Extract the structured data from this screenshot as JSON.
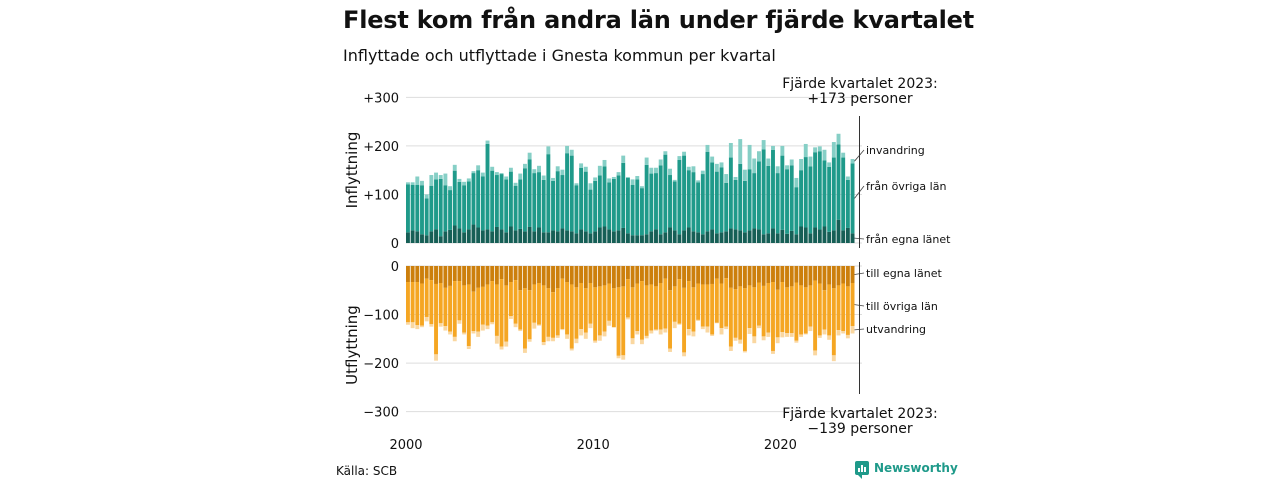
{
  "header": {
    "title": "Flest kom från andra län under fjärde kvartalet",
    "subtitle": "Inflyttade och utflyttade i Gnesta kommun per kvartal"
  },
  "footer": {
    "source": "Källa: SCB",
    "brand": "Newsworthy",
    "brand_icon": "bar-chart-icon"
  },
  "colors": {
    "from_own_county": "#165f56",
    "from_other_counties": "#1f9a8a",
    "immigration": "#86cfc6",
    "to_own_county": "#cc7f0c",
    "to_other_counties": "#f5a623",
    "emigration": "#fad7a0",
    "text": "#111111",
    "grid": "#dddddd"
  },
  "chart_data": [
    {
      "type": "bar",
      "stacked": true,
      "ylabel": "Inflyttning",
      "ylim": [
        0,
        300
      ],
      "yticks": [
        0,
        100,
        200,
        300
      ],
      "ytick_labels": [
        "0",
        "+100",
        "+200",
        "+300"
      ],
      "x_start": 2000,
      "x_ticks": [
        "2000",
        "2010",
        "2020"
      ],
      "grid": true,
      "annotation": "Fjärde kvartalet 2023:\n+173 personer",
      "series": [
        {
          "name": "från egna länet",
          "values": [
            22,
            26,
            24,
            18,
            16,
            24,
            28,
            14,
            24,
            27,
            36,
            30,
            22,
            28,
            38,
            32,
            26,
            28,
            24,
            33,
            28,
            22,
            34,
            26,
            29,
            24,
            33,
            24,
            32,
            22,
            22,
            26,
            24,
            30,
            26,
            24,
            20,
            28,
            24,
            20,
            24,
            32,
            34,
            28,
            24,
            26,
            31,
            20,
            16,
            16,
            16,
            18,
            24,
            28,
            18,
            22,
            32,
            26,
            18,
            26,
            32,
            24,
            22,
            18,
            24,
            28,
            20,
            22,
            24,
            30,
            28,
            26,
            22,
            26,
            30,
            28,
            18,
            20,
            30,
            20,
            27,
            19,
            25,
            18,
            34,
            32,
            20,
            32,
            28,
            34,
            23,
            26,
            48,
            26,
            31,
            20
          ]
        },
        {
          "name": "från övriga län",
          "values": [
            99,
            94,
            96,
            101,
            76,
            94,
            103,
            118,
            95,
            82,
            113,
            96,
            97,
            99,
            106,
            118,
            111,
            176,
            125,
            107,
            114,
            109,
            113,
            92,
            102,
            130,
            139,
            120,
            114,
            108,
            161,
            102,
            124,
            110,
            159,
            156,
            99,
            127,
            123,
            90,
            104,
            107,
            124,
            97,
            108,
            113,
            134,
            114,
            104,
            115,
            97,
            143,
            119,
            116,
            142,
            160,
            108,
            101,
            153,
            154,
            118,
            122,
            103,
            124,
            164,
            138,
            127,
            134,
            100,
            146,
            102,
            137,
            106,
            126,
            114,
            140,
            175,
            139,
            162,
            124,
            153,
            133,
            135,
            97,
            116,
            145,
            138,
            155,
            161,
            136,
            134,
            150,
            155,
            150,
            99,
            144
          ]
        },
        {
          "name": "invandring",
          "values": [
            4,
            5,
            17,
            9,
            8,
            22,
            14,
            8,
            24,
            8,
            12,
            6,
            7,
            6,
            4,
            10,
            8,
            7,
            8,
            6,
            2,
            6,
            8,
            6,
            12,
            9,
            14,
            8,
            13,
            9,
            16,
            6,
            10,
            11,
            15,
            12,
            4,
            9,
            10,
            13,
            7,
            20,
            13,
            8,
            4,
            7,
            15,
            2,
            11,
            7,
            4,
            15,
            12,
            11,
            12,
            7,
            13,
            3,
            8,
            8,
            7,
            12,
            4,
            7,
            14,
            12,
            16,
            10,
            18,
            30,
            6,
            51,
            23,
            50,
            30,
            21,
            19,
            15,
            8,
            14,
            20,
            8,
            12,
            19,
            23,
            27,
            20,
            10,
            10,
            22,
            9,
            32,
            22,
            10,
            7,
            9
          ]
        }
      ]
    },
    {
      "type": "bar",
      "stacked": true,
      "ylabel": "Utflyttning",
      "ylim": [
        -300,
        0
      ],
      "yticks": [
        0,
        -100,
        -200,
        -300
      ],
      "ytick_labels": [
        "0",
        "−100",
        "−200",
        "−300"
      ],
      "x_start": 2000,
      "x_ticks": [
        "2000",
        "2010",
        "2020"
      ],
      "grid": true,
      "annotation": "Fjärde kvartalet 2023:\n−139 personer",
      "series": [
        {
          "name": "till egna länet",
          "values": [
            -33,
            -33,
            -33,
            -36,
            -26,
            -29,
            -37,
            -35,
            -45,
            -41,
            -31,
            -31,
            -40,
            -38,
            -53,
            -45,
            -43,
            -38,
            -31,
            -38,
            -27,
            -40,
            -33,
            -29,
            -50,
            -46,
            -50,
            -38,
            -35,
            -40,
            -46,
            -54,
            -46,
            -26,
            -33,
            -38,
            -44,
            -35,
            -46,
            -35,
            -44,
            -42,
            -40,
            -36,
            -46,
            -44,
            -42,
            -27,
            -44,
            -36,
            -31,
            -40,
            -38,
            -42,
            -35,
            -26,
            -50,
            -42,
            -27,
            -45,
            -31,
            -44,
            -36,
            -38,
            -38,
            -37,
            -26,
            -36,
            -25,
            -45,
            -48,
            -42,
            -46,
            -40,
            -44,
            -34,
            -41,
            -35,
            -33,
            -49,
            -33,
            -44,
            -42,
            -34,
            -40,
            -44,
            -40,
            -30,
            -36,
            -50,
            -38,
            -46,
            -40,
            -36,
            -42,
            -35
          ]
        },
        {
          "name": "till övriga län",
          "values": [
            -83,
            -83,
            -89,
            -87,
            -79,
            -91,
            -145,
            -83,
            -79,
            -94,
            -115,
            -81,
            -97,
            -127,
            -81,
            -90,
            -78,
            -85,
            -85,
            -106,
            -139,
            -116,
            -70,
            -90,
            -81,
            -124,
            -101,
            -79,
            -86,
            -117,
            -100,
            -94,
            -97,
            -104,
            -108,
            -132,
            -106,
            -95,
            -91,
            -84,
            -110,
            -101,
            -95,
            -77,
            -80,
            -141,
            -142,
            -79,
            -105,
            -98,
            -121,
            -104,
            -95,
            -89,
            -96,
            -103,
            -120,
            -73,
            -92,
            -133,
            -99,
            -91,
            -75,
            -87,
            -87,
            -104,
            -91,
            -92,
            -100,
            -121,
            -100,
            -110,
            -129,
            -88,
            -101,
            -89,
            -104,
            -102,
            -142,
            -98,
            -103,
            -94,
            -96,
            -120,
            -101,
            -95,
            -85,
            -144,
            -107,
            -81,
            -105,
            -138,
            -92,
            -98,
            -100,
            -89
          ]
        },
        {
          "name": "utvandring",
          "values": [
            -5,
            -12,
            -8,
            -3,
            -9,
            -5,
            -13,
            -7,
            -9,
            -6,
            -9,
            -7,
            -4,
            -6,
            -5,
            -11,
            -12,
            -7,
            -4,
            -16,
            -6,
            -10,
            -6,
            -7,
            -3,
            -9,
            -5,
            -12,
            -2,
            -6,
            -9,
            -7,
            -5,
            -2,
            -9,
            -4,
            -9,
            -13,
            -13,
            -9,
            -4,
            -11,
            -10,
            -10,
            -1,
            -5,
            -9,
            -4,
            -12,
            -7,
            -9,
            -5,
            -6,
            -2,
            -10,
            -8,
            -7,
            -13,
            -2,
            -8,
            -13,
            -10,
            -2,
            -5,
            -12,
            -3,
            -1,
            -13,
            -5,
            -9,
            -6,
            -8,
            -3,
            -12,
            -14,
            -5,
            -8,
            -9,
            -6,
            -12,
            -11,
            -8,
            -8,
            -4,
            -5,
            -2,
            -9,
            -10,
            -5,
            -10,
            -9,
            -12,
            -11,
            -5,
            -7,
            -15
          ]
        }
      ]
    }
  ]
}
